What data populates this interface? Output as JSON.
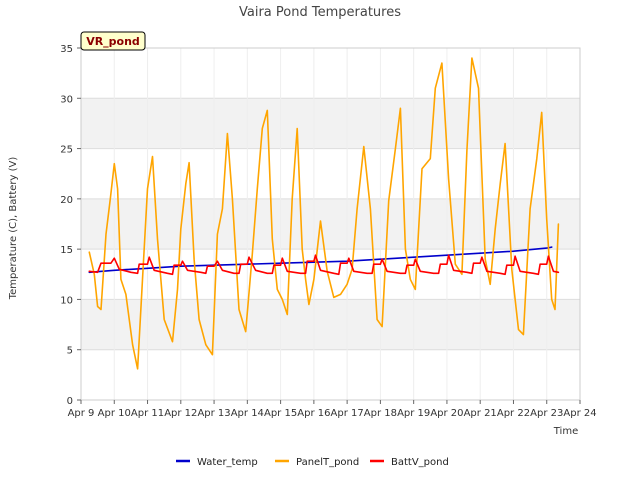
{
  "chart_data": {
    "type": "line",
    "title": "Vaira Pond Temperatures",
    "xlabel": "Time",
    "ylabel": "Temperature (C), Battery (V)",
    "site_tag": "VR_pond",
    "xlim": [
      0,
      15
    ],
    "ylim": [
      0,
      35
    ],
    "x_ticks": [
      {
        "x": 0,
        "label": "Apr 9"
      },
      {
        "x": 1,
        "label": "Apr 10"
      },
      {
        "x": 2,
        "label": "Apr 11"
      },
      {
        "x": 3,
        "label": "Apr 12"
      },
      {
        "x": 4,
        "label": "Apr 13"
      },
      {
        "x": 5,
        "label": "Apr 14"
      },
      {
        "x": 6,
        "label": "Apr 15"
      },
      {
        "x": 7,
        "label": "Apr 16"
      },
      {
        "x": 8,
        "label": "Apr 17"
      },
      {
        "x": 9,
        "label": "Apr 18"
      },
      {
        "x": 10,
        "label": "Apr 19"
      },
      {
        "x": 11,
        "label": "Apr 20"
      },
      {
        "x": 12,
        "label": "Apr 21"
      },
      {
        "x": 13,
        "label": "Apr 22"
      },
      {
        "x": 14,
        "label": "Apr 23"
      },
      {
        "x": 15,
        "label": "Apr 24"
      }
    ],
    "y_ticks": [
      0,
      5,
      10,
      15,
      20,
      25,
      30,
      35
    ],
    "grid": true,
    "band_color": "#f2f2f2",
    "legend_position": "bottom",
    "series": [
      {
        "name": "Water_temp",
        "color": "#0000cc",
        "x": [
          0.25,
          1,
          2,
          3,
          4,
          5,
          6,
          7,
          8,
          9,
          10,
          11,
          12,
          13,
          14,
          14.15
        ],
        "y": [
          12.7,
          12.9,
          13.1,
          13.3,
          13.4,
          13.5,
          13.6,
          13.7,
          13.8,
          14.0,
          14.2,
          14.4,
          14.6,
          14.8,
          15.1,
          15.2
        ]
      },
      {
        "name": "PanelT_pond",
        "color": "#ffa500",
        "x": [
          0.25,
          0.4,
          0.5,
          0.6,
          0.75,
          0.88,
          1.0,
          1.1,
          1.2,
          1.35,
          1.55,
          1.7,
          1.85,
          2.0,
          2.15,
          2.3,
          2.5,
          2.75,
          2.9,
          3.0,
          3.15,
          3.25,
          3.4,
          3.55,
          3.75,
          3.95,
          4.1,
          4.25,
          4.4,
          4.55,
          4.75,
          4.95,
          5.15,
          5.3,
          5.45,
          5.6,
          5.75,
          5.9,
          6.05,
          6.2,
          6.35,
          6.5,
          6.65,
          6.75,
          6.85,
          7.0,
          7.2,
          7.4,
          7.6,
          7.8,
          8.0,
          8.15,
          8.3,
          8.5,
          8.7,
          8.9,
          9.05,
          9.25,
          9.45,
          9.6,
          9.75,
          9.9,
          10.05,
          10.25,
          10.5,
          10.65,
          10.85,
          11.05,
          11.25,
          11.45,
          11.6,
          11.75,
          11.95,
          12.15,
          12.3,
          12.45,
          12.6,
          12.75,
          12.95,
          13.15,
          13.3,
          13.5,
          13.7,
          13.85,
          14.0,
          14.15,
          14.25,
          14.35
        ],
        "y": [
          14.7,
          12.5,
          9.3,
          9.0,
          16.5,
          20.0,
          23.5,
          21.0,
          12.0,
          10.5,
          5.5,
          3.1,
          12.0,
          21.0,
          24.2,
          16.0,
          8.0,
          5.8,
          11.0,
          17.0,
          21.5,
          23.6,
          14.0,
          8.0,
          5.5,
          4.5,
          16.5,
          19.0,
          26.5,
          20.0,
          9.0,
          6.8,
          14.5,
          21.0,
          27.0,
          28.8,
          16.0,
          11.0,
          10.0,
          8.5,
          20.0,
          27.0,
          15.0,
          12.0,
          9.5,
          12.0,
          17.8,
          12.8,
          10.2,
          10.5,
          11.5,
          13.0,
          19.0,
          25.2,
          19.0,
          8.0,
          7.3,
          19.8,
          25.0,
          29.0,
          15.0,
          12.0,
          11.0,
          23.0,
          24.0,
          31.0,
          33.5,
          22.0,
          13.5,
          12.5,
          24.8,
          34.0,
          31.0,
          14.0,
          11.5,
          17.0,
          21.5,
          25.5,
          13.0,
          7.0,
          6.5,
          19.0,
          24.0,
          28.6,
          18.0,
          10.0,
          9.0,
          17.5
        ]
      },
      {
        "name": "BattV_pond",
        "color": "#ff0000",
        "x": [
          0.25,
          0.5,
          0.6,
          0.9,
          1.0,
          1.15,
          1.5,
          1.7,
          1.75,
          2.0,
          2.05,
          2.2,
          2.6,
          2.75,
          2.8,
          3.0,
          3.05,
          3.2,
          3.6,
          3.75,
          3.8,
          4.0,
          4.1,
          4.25,
          4.6,
          4.75,
          4.8,
          5.0,
          5.05,
          5.25,
          5.6,
          5.75,
          5.8,
          6.0,
          6.05,
          6.2,
          6.6,
          6.75,
          6.8,
          7.0,
          7.05,
          7.2,
          7.6,
          7.75,
          7.8,
          8.0,
          8.05,
          8.2,
          8.6,
          8.75,
          8.8,
          9.0,
          9.05,
          9.2,
          9.6,
          9.75,
          9.8,
          10.0,
          10.05,
          10.2,
          10.6,
          10.75,
          10.8,
          11.0,
          11.05,
          11.2,
          11.6,
          11.75,
          11.8,
          12.0,
          12.05,
          12.2,
          12.6,
          12.75,
          12.8,
          13.0,
          13.05,
          13.2,
          13.6,
          13.75,
          13.8,
          14.0,
          14.05,
          14.2,
          14.35
        ],
        "y": [
          12.8,
          12.7,
          13.6,
          13.6,
          14.1,
          13.0,
          12.7,
          12.6,
          13.5,
          13.5,
          14.2,
          12.9,
          12.6,
          12.5,
          13.4,
          13.4,
          13.8,
          12.9,
          12.7,
          12.6,
          13.3,
          13.3,
          13.8,
          12.9,
          12.6,
          12.6,
          13.5,
          13.5,
          14.2,
          12.9,
          12.6,
          12.6,
          13.4,
          13.4,
          14.1,
          12.8,
          12.6,
          12.6,
          13.8,
          13.8,
          14.4,
          12.9,
          12.6,
          12.5,
          13.6,
          13.6,
          14.1,
          12.8,
          12.6,
          12.6,
          13.5,
          13.5,
          14.0,
          12.8,
          12.6,
          12.6,
          13.4,
          13.4,
          14.0,
          12.8,
          12.6,
          12.6,
          13.5,
          13.5,
          14.4,
          12.9,
          12.7,
          12.6,
          13.6,
          13.6,
          14.2,
          12.8,
          12.6,
          12.5,
          13.4,
          13.4,
          14.3,
          12.8,
          12.6,
          12.5,
          13.5,
          13.5,
          14.3,
          12.8,
          12.7
        ]
      }
    ]
  }
}
